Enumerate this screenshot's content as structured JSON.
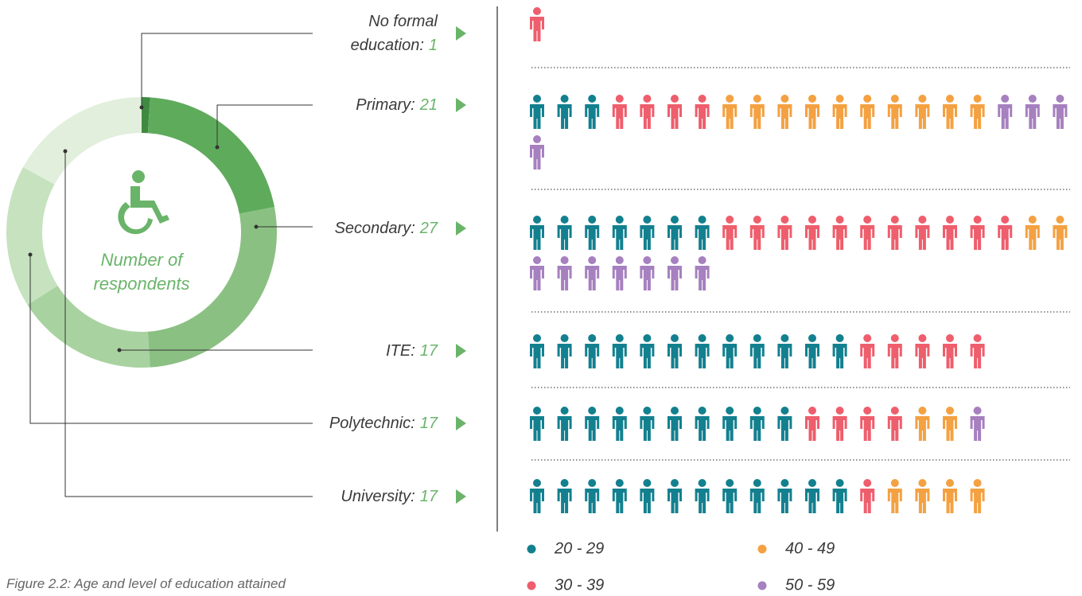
{
  "chart_data": {
    "type": "donut",
    "subtitle": "Number of respondents",
    "caption": "Figure 2.2: Age and level of education attained",
    "categories": [
      "No formal education:",
      "Primary:",
      "Secondary:",
      "ITE:",
      "Polytechnic:",
      "University:"
    ],
    "values": [
      1,
      21,
      27,
      17,
      17,
      17
    ],
    "colors": [
      "#3f8a41",
      "#5fab5c",
      "#8bc083",
      "#a9d2a1",
      "#c6e2bf",
      "#e1efdc"
    ],
    "series": [
      {
        "name": "20 - 29",
        "color": "#13808f",
        "values": [
          0,
          3,
          7,
          12,
          10,
          12
        ]
      },
      {
        "name": "30 - 39",
        "color": "#ee5e6c",
        "values": [
          1,
          4,
          11,
          5,
          4,
          1
        ]
      },
      {
        "name": "40 - 49",
        "color": "#f4a142",
        "values": [
          0,
          10,
          2,
          0,
          2,
          4
        ]
      },
      {
        "name": "50 - 59",
        "color": "#a680bf",
        "values": [
          0,
          4,
          7,
          0,
          1,
          0
        ]
      }
    ]
  }
}
